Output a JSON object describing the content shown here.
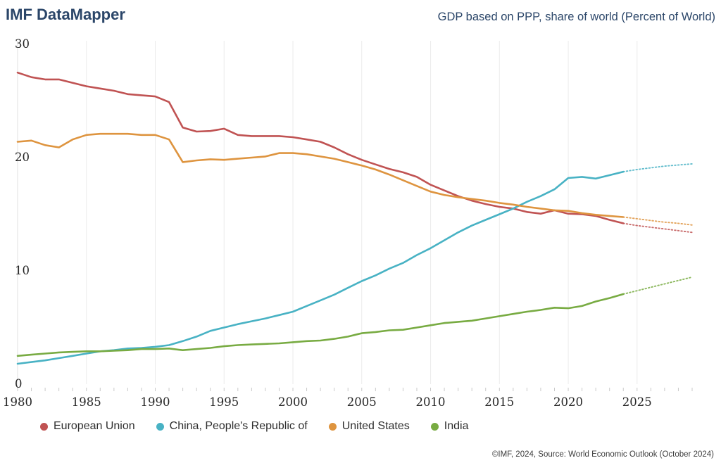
{
  "header": {
    "app_title": "IMF DataMapper",
    "chart_title": "GDP based on PPP, share of world (Percent of World)"
  },
  "footer": {
    "attribution": "©IMF, 2024, Source: World Economic Outlook (October 2024)"
  },
  "colors": {
    "title_navy": "#2b4669",
    "axis_text": "#262626",
    "gridline": "#ebebeb",
    "axis_line": "#e0e0e0",
    "minor_tick": "#c9c9c9"
  },
  "chart_data": {
    "type": "line",
    "title": "GDP based on PPP, share of world (Percent of World)",
    "ylabel": "Percent of World",
    "xlim": [
      1980,
      2029
    ],
    "ylim": [
      0,
      30
    ],
    "xticks": [
      1980,
      1985,
      1990,
      1995,
      2000,
      2005,
      2010,
      2015,
      2020,
      2025
    ],
    "yticks": [
      0,
      10,
      20,
      30
    ],
    "grid": "vertical-only",
    "legend_position": "bottom",
    "projection_from_year": 2024,
    "years": [
      1980,
      1981,
      1982,
      1983,
      1984,
      1985,
      1986,
      1987,
      1988,
      1989,
      1990,
      1991,
      1992,
      1993,
      1994,
      1995,
      1996,
      1997,
      1998,
      1999,
      2000,
      2001,
      2002,
      2003,
      2004,
      2005,
      2006,
      2007,
      2008,
      2009,
      2010,
      2011,
      2012,
      2013,
      2014,
      2015,
      2016,
      2017,
      2018,
      2019,
      2020,
      2021,
      2022,
      2023,
      2024,
      2025,
      2026,
      2027,
      2028,
      2029
    ],
    "series": [
      {
        "name": "European Union",
        "color": "#c05353",
        "values": [
          27.5,
          27.1,
          26.9,
          26.9,
          26.6,
          26.3,
          26.1,
          25.9,
          25.6,
          25.5,
          25.4,
          24.9,
          22.65,
          22.3,
          22.35,
          22.55,
          22.0,
          21.9,
          21.9,
          21.9,
          21.8,
          21.6,
          21.4,
          20.9,
          20.3,
          19.8,
          19.4,
          19.0,
          18.7,
          18.3,
          17.6,
          17.1,
          16.6,
          16.2,
          15.9,
          15.65,
          15.5,
          15.2,
          15.05,
          15.35,
          15.05,
          15.0,
          14.85,
          14.5,
          14.2,
          14.0,
          13.85,
          13.7,
          13.55,
          13.4
        ]
      },
      {
        "name": "China, People's Republic of",
        "color": "#48b2c4",
        "values": [
          1.8,
          1.95,
          2.1,
          2.3,
          2.5,
          2.7,
          2.9,
          3.0,
          3.15,
          3.2,
          3.3,
          3.45,
          3.8,
          4.2,
          4.7,
          5.0,
          5.3,
          5.55,
          5.8,
          6.1,
          6.4,
          6.9,
          7.4,
          7.9,
          8.5,
          9.1,
          9.6,
          10.2,
          10.7,
          11.4,
          12.0,
          12.7,
          13.4,
          14.0,
          14.5,
          15.0,
          15.5,
          16.1,
          16.6,
          17.2,
          18.2,
          18.3,
          18.15,
          18.45,
          18.75,
          18.95,
          19.1,
          19.25,
          19.35,
          19.45
        ]
      },
      {
        "name": "United States",
        "color": "#de943f",
        "values": [
          21.4,
          21.5,
          21.1,
          20.9,
          21.6,
          22.0,
          22.1,
          22.1,
          22.1,
          22.0,
          22.0,
          21.6,
          19.6,
          19.75,
          19.85,
          19.8,
          19.9,
          20.0,
          20.1,
          20.4,
          20.4,
          20.3,
          20.1,
          19.9,
          19.6,
          19.3,
          18.95,
          18.5,
          18.0,
          17.5,
          17.0,
          16.7,
          16.5,
          16.35,
          16.2,
          16.0,
          15.85,
          15.65,
          15.5,
          15.35,
          15.3,
          15.1,
          14.95,
          14.85,
          14.75,
          14.6,
          14.45,
          14.3,
          14.2,
          14.05
        ]
      },
      {
        "name": "India",
        "color": "#78ab42",
        "values": [
          2.5,
          2.6,
          2.7,
          2.8,
          2.85,
          2.9,
          2.9,
          2.95,
          3.0,
          3.1,
          3.1,
          3.15,
          3.0,
          3.1,
          3.2,
          3.35,
          3.45,
          3.5,
          3.55,
          3.6,
          3.7,
          3.8,
          3.85,
          4.0,
          4.2,
          4.5,
          4.6,
          4.75,
          4.8,
          5.0,
          5.2,
          5.4,
          5.5,
          5.6,
          5.8,
          6.0,
          6.2,
          6.4,
          6.55,
          6.75,
          6.7,
          6.9,
          7.3,
          7.6,
          7.95,
          8.25,
          8.55,
          8.85,
          9.15,
          9.45
        ]
      }
    ]
  }
}
